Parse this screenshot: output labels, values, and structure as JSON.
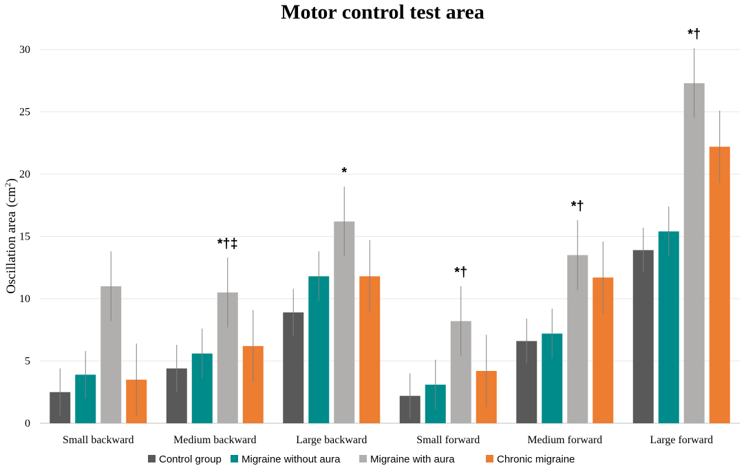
{
  "chart_data": {
    "type": "bar",
    "title": "Motor control test area",
    "ylabel": "Oscillation area",
    "ylabel_unit": "(cm",
    "ylabel_unit_sup": "2",
    "ylabel_unit_close": ")",
    "ylim": [
      0,
      30
    ],
    "yticks": [
      0,
      5,
      10,
      15,
      20,
      25,
      30
    ],
    "grid": true,
    "legend_position": "bottom",
    "categories": [
      "Small backward",
      "Medium backward",
      "Large backward",
      "Small forward",
      "Medium forward",
      "Large forward"
    ],
    "series": [
      {
        "name": "Control group",
        "color": "#595959",
        "values": [
          2.5,
          4.4,
          8.9,
          2.2,
          6.6,
          13.9
        ],
        "errors": [
          1.9,
          1.9,
          1.9,
          1.8,
          1.8,
          1.8
        ]
      },
      {
        "name": "Migraine without aura",
        "color": "#008b8b",
        "values": [
          3.9,
          5.6,
          11.8,
          3.1,
          7.2,
          15.4
        ],
        "errors": [
          1.9,
          2.0,
          2.0,
          2.0,
          2.0,
          2.0
        ]
      },
      {
        "name": "Migraine with aura",
        "color": "#b1aeae",
        "values": [
          11.0,
          10.5,
          16.2,
          8.2,
          13.5,
          27.3
        ],
        "errors": [
          2.8,
          2.8,
          2.8,
          2.8,
          2.8,
          2.8
        ]
      },
      {
        "name": "Chronic migraine",
        "color": "#ed7d31",
        "values": [
          3.5,
          6.2,
          11.8,
          4.2,
          11.7,
          22.2
        ],
        "errors": [
          2.9,
          2.9,
          2.9,
          2.9,
          2.9,
          2.9
        ]
      }
    ],
    "annotations": [
      "",
      "*†‡",
      "*",
      "*†",
      "*†",
      "*†"
    ]
  }
}
